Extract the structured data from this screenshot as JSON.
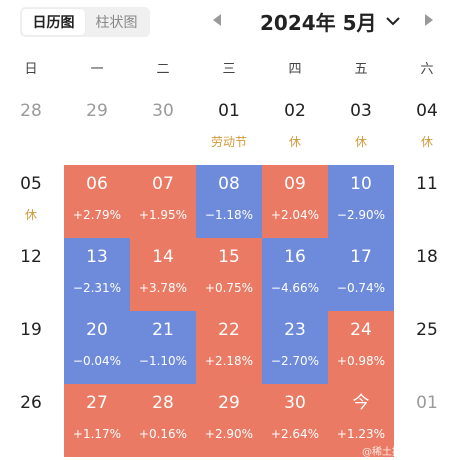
{
  "view_toggle": {
    "calendar_label": "日历图",
    "bar_label": "柱状图"
  },
  "header": {
    "month_title": "2024年 5月"
  },
  "weekdays": [
    "日",
    "一",
    "二",
    "三",
    "四",
    "五",
    "六"
  ],
  "weeks": [
    [
      {
        "day": "28",
        "type": "other",
        "sub": ""
      },
      {
        "day": "29",
        "type": "other",
        "sub": ""
      },
      {
        "day": "30",
        "type": "other",
        "sub": ""
      },
      {
        "day": "01",
        "type": "plain",
        "sub": "劳动节",
        "holiday": true
      },
      {
        "day": "02",
        "type": "plain",
        "sub": "休",
        "holiday": true
      },
      {
        "day": "03",
        "type": "plain",
        "sub": "休",
        "holiday": true
      },
      {
        "day": "04",
        "type": "plain",
        "sub": "休",
        "holiday": true
      }
    ],
    [
      {
        "day": "05",
        "type": "plain",
        "sub": "休",
        "holiday": true
      },
      {
        "day": "06",
        "type": "up",
        "sub": "+2.79%"
      },
      {
        "day": "07",
        "type": "up",
        "sub": "+1.95%"
      },
      {
        "day": "08",
        "type": "down",
        "sub": "−1.18%"
      },
      {
        "day": "09",
        "type": "up",
        "sub": "+2.04%"
      },
      {
        "day": "10",
        "type": "down",
        "sub": "−2.90%"
      },
      {
        "day": "11",
        "type": "plain",
        "sub": ""
      }
    ],
    [
      {
        "day": "12",
        "type": "plain",
        "sub": ""
      },
      {
        "day": "13",
        "type": "down",
        "sub": "−2.31%"
      },
      {
        "day": "14",
        "type": "up",
        "sub": "+3.78%"
      },
      {
        "day": "15",
        "type": "up",
        "sub": "+0.75%"
      },
      {
        "day": "16",
        "type": "down",
        "sub": "−4.66%"
      },
      {
        "day": "17",
        "type": "down",
        "sub": "−0.74%"
      },
      {
        "day": "18",
        "type": "plain",
        "sub": ""
      }
    ],
    [
      {
        "day": "19",
        "type": "plain",
        "sub": ""
      },
      {
        "day": "20",
        "type": "down",
        "sub": "−0.04%"
      },
      {
        "day": "21",
        "type": "down",
        "sub": "−1.10%"
      },
      {
        "day": "22",
        "type": "up",
        "sub": "+2.18%"
      },
      {
        "day": "23",
        "type": "down",
        "sub": "−2.70%"
      },
      {
        "day": "24",
        "type": "up",
        "sub": "+0.98%"
      },
      {
        "day": "25",
        "type": "plain",
        "sub": ""
      }
    ],
    [
      {
        "day": "26",
        "type": "plain",
        "sub": ""
      },
      {
        "day": "27",
        "type": "up",
        "sub": "+1.17%"
      },
      {
        "day": "28",
        "type": "up",
        "sub": "+0.16%"
      },
      {
        "day": "29",
        "type": "up",
        "sub": "+2.90%"
      },
      {
        "day": "30",
        "type": "up",
        "sub": "+2.64%"
      },
      {
        "day": "今",
        "type": "up",
        "sub": "+1.23%"
      },
      {
        "day": "01",
        "type": "other",
        "sub": ""
      }
    ]
  ],
  "colors": {
    "up": "#ea7a63",
    "down": "#6e8bdb",
    "holiday": "#d19a3a"
  },
  "watermark": "@稀土掘金技术社区"
}
